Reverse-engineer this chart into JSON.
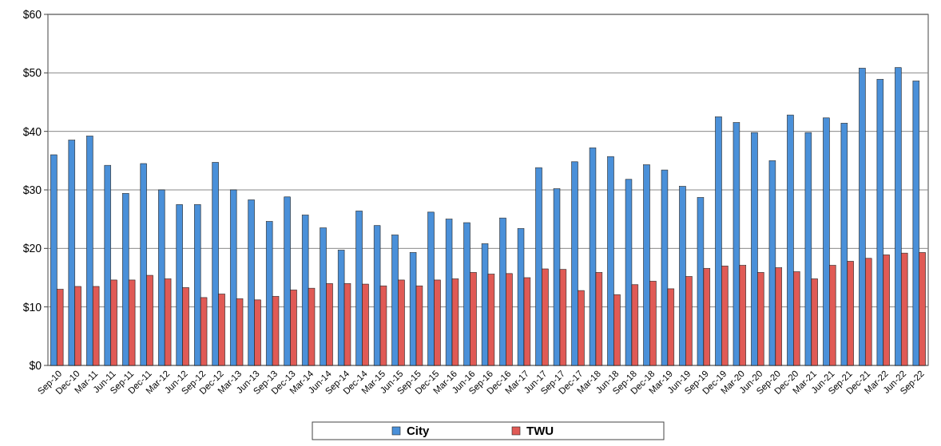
{
  "chart_data": {
    "type": "bar",
    "categories": [
      "Sep-10",
      "Dec-10",
      "Mar-11",
      "Jun-11",
      "Sep-11",
      "Dec-11",
      "Mar-12",
      "Jun-12",
      "Sep-12",
      "Dec-12",
      "Mar-13",
      "Jun-13",
      "Sep-13",
      "Dec-13",
      "Mar-14",
      "Jun-14",
      "Sep-14",
      "Dec-14",
      "Mar-15",
      "Jun-15",
      "Sep-15",
      "Dec-15",
      "Mar-16",
      "Jun-16",
      "Sep-16",
      "Dec-16",
      "Mar-17",
      "Jun-17",
      "Sep-17",
      "Dec-17",
      "Mar-18",
      "Jun-18",
      "Sep-18",
      "Dec-18",
      "Mar-19",
      "Jun-19",
      "Sep-19",
      "Dec-19",
      "Mar-20",
      "Jun-20",
      "Sep-20",
      "Dec-20",
      "Mar-21",
      "Jun-21",
      "Sep-21",
      "Dec-21",
      "Mar-22",
      "Jun-22",
      "Sep-22"
    ],
    "series": [
      {
        "name": "City",
        "color": "#4a90d9",
        "values": [
          36,
          38.5,
          39.2,
          34.2,
          29.4,
          34.5,
          30,
          27.5,
          27.5,
          34.7,
          30,
          28.3,
          24.6,
          28.8,
          25.7,
          23.5,
          19.7,
          26.4,
          23.9,
          22.3,
          19.3,
          26.2,
          25,
          24.4,
          20.8,
          25.2,
          23.4,
          33.8,
          30.2,
          34.8,
          37.2,
          35.7,
          31.8,
          34.3,
          33.4,
          30.6,
          28.7,
          42.5,
          41.5,
          39.8,
          35,
          42.8,
          39.8,
          42.3,
          41.4,
          50.8,
          48.9,
          50.9,
          48.6
        ]
      },
      {
        "name": "TWU",
        "color": "#e05a55",
        "values": [
          13,
          13.5,
          13.5,
          14.6,
          14.6,
          15.4,
          14.8,
          13.3,
          11.6,
          12.2,
          11.4,
          11.2,
          11.8,
          12.9,
          13.2,
          14,
          14,
          13.9,
          13.6,
          14.6,
          13.6,
          14.6,
          14.8,
          15.9,
          15.6,
          15.7,
          15,
          16.5,
          16.4,
          12.8,
          15.9,
          12.1,
          13.8,
          14.4,
          13.1,
          15.2,
          16.6,
          17,
          17.1,
          15.9,
          16.7,
          16,
          14.8,
          17.1,
          17.8,
          18.3,
          18.9,
          19.2,
          19.3
        ]
      }
    ],
    "ylim": [
      0,
      60
    ],
    "yticks": [
      {
        "value": 0,
        "label": "$0"
      },
      {
        "value": 10,
        "label": "$10"
      },
      {
        "value": 20,
        "label": "$20"
      },
      {
        "value": 30,
        "label": "$30"
      },
      {
        "value": 40,
        "label": "$40"
      },
      {
        "value": 50,
        "label": "$50"
      },
      {
        "value": 60,
        "label": "$60"
      }
    ],
    "grid": "y",
    "legend": "bottom"
  }
}
